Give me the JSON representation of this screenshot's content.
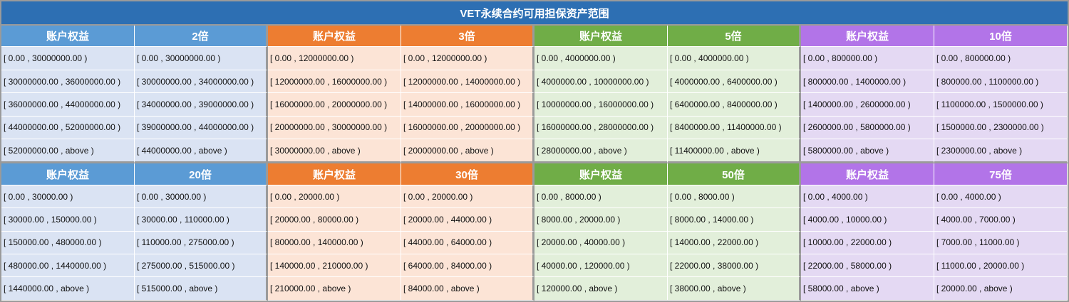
{
  "title": "VET永续合约可用担保资产范围",
  "colors": {
    "title_bg": "#2d6fb3",
    "blue_header": "#5b9bd5",
    "blue_cell": "#dae3f3",
    "orange_header": "#ed7d31",
    "orange_cell": "#fce4d6",
    "green_header": "#70ad47",
    "green_cell": "#e2efda",
    "purple_header": "#b274e8",
    "purple_cell": "#e4d9f3"
  },
  "blocks": [
    {
      "groups": [
        {
          "equity_label": "账户权益",
          "leverage_label": "2倍",
          "rows": [
            [
              "[ 0.00 , 30000000.00 )",
              "[ 0.00 , 30000000.00 )"
            ],
            [
              "[ 30000000.00 , 36000000.00 )",
              "[ 30000000.00 , 34000000.00 )"
            ],
            [
              "[ 36000000.00 , 44000000.00 )",
              "[ 34000000.00 , 39000000.00 )"
            ],
            [
              "[ 44000000.00 , 52000000.00 )",
              "[ 39000000.00 , 44000000.00 )"
            ],
            [
              "[ 52000000.00 , above )",
              "[ 44000000.00 , above )"
            ]
          ]
        },
        {
          "equity_label": "账户权益",
          "leverage_label": "3倍",
          "rows": [
            [
              "[ 0.00 , 12000000.00 )",
              "[ 0.00 , 12000000.00 )"
            ],
            [
              "[ 12000000.00 , 16000000.00 )",
              "[ 12000000.00 , 14000000.00 )"
            ],
            [
              "[ 16000000.00 , 20000000.00 )",
              "[ 14000000.00 , 16000000.00 )"
            ],
            [
              "[ 20000000.00 , 30000000.00 )",
              "[ 16000000.00 , 20000000.00 )"
            ],
            [
              "[ 30000000.00 , above )",
              "[ 20000000.00 , above )"
            ]
          ]
        },
        {
          "equity_label": "账户权益",
          "leverage_label": "5倍",
          "rows": [
            [
              "[ 0.00 , 4000000.00 )",
              "[ 0.00 , 4000000.00 )"
            ],
            [
              "[ 4000000.00 , 10000000.00 )",
              "[ 4000000.00 , 6400000.00 )"
            ],
            [
              "[ 10000000.00 , 16000000.00 )",
              "[ 6400000.00 , 8400000.00 )"
            ],
            [
              "[ 16000000.00 , 28000000.00 )",
              "[ 8400000.00 , 11400000.00 )"
            ],
            [
              "[ 28000000.00 , above )",
              "[ 11400000.00 , above )"
            ]
          ]
        },
        {
          "equity_label": "账户权益",
          "leverage_label": "10倍",
          "rows": [
            [
              "[ 0.00 , 800000.00 )",
              "[ 0.00 , 800000.00 )"
            ],
            [
              "[ 800000.00 , 1400000.00 )",
              "[ 800000.00 , 1100000.00 )"
            ],
            [
              "[ 1400000.00 , 2600000.00 )",
              "[ 1100000.00 , 1500000.00 )"
            ],
            [
              "[ 2600000.00 , 5800000.00 )",
              "[ 1500000.00 , 2300000.00 )"
            ],
            [
              "[ 5800000.00 , above )",
              "[ 2300000.00 , above )"
            ]
          ]
        }
      ]
    },
    {
      "groups": [
        {
          "equity_label": "账户权益",
          "leverage_label": "20倍",
          "rows": [
            [
              "[ 0.00 , 30000.00 )",
              "[ 0.00 , 30000.00 )"
            ],
            [
              "[ 30000.00 , 150000.00 )",
              "[ 30000.00 , 110000.00 )"
            ],
            [
              "[ 150000.00 , 480000.00 )",
              "[ 110000.00 , 275000.00 )"
            ],
            [
              "[ 480000.00 , 1440000.00 )",
              "[ 275000.00 , 515000.00 )"
            ],
            [
              "[ 1440000.00 , above )",
              "[ 515000.00 , above )"
            ]
          ]
        },
        {
          "equity_label": "账户权益",
          "leverage_label": "30倍",
          "rows": [
            [
              "[ 0.00 , 20000.00 )",
              "[ 0.00 , 20000.00 )"
            ],
            [
              "[ 20000.00 , 80000.00 )",
              "[ 20000.00 , 44000.00 )"
            ],
            [
              "[ 80000.00 , 140000.00 )",
              "[ 44000.00 , 64000.00 )"
            ],
            [
              "[ 140000.00 , 210000.00 )",
              "[ 64000.00 , 84000.00 )"
            ],
            [
              "[ 210000.00 , above )",
              "[ 84000.00 , above )"
            ]
          ]
        },
        {
          "equity_label": "账户权益",
          "leverage_label": "50倍",
          "rows": [
            [
              "[ 0.00 , 8000.00 )",
              "[ 0.00 , 8000.00 )"
            ],
            [
              "[ 8000.00 , 20000.00 )",
              "[ 8000.00 , 14000.00 )"
            ],
            [
              "[ 20000.00 , 40000.00 )",
              "[ 14000.00 , 22000.00 )"
            ],
            [
              "[ 40000.00 , 120000.00 )",
              "[ 22000.00 , 38000.00 )"
            ],
            [
              "[ 120000.00 , above )",
              "[ 38000.00 , above )"
            ]
          ]
        },
        {
          "equity_label": "账户权益",
          "leverage_label": "75倍",
          "rows": [
            [
              "[ 0.00 , 4000.00 )",
              "[ 0.00 , 4000.00 )"
            ],
            [
              "[ 4000.00 , 10000.00 )",
              "[ 4000.00 , 7000.00 )"
            ],
            [
              "[ 10000.00 , 22000.00 )",
              "[ 7000.00 , 11000.00 )"
            ],
            [
              "[ 22000.00 , 58000.00 )",
              "[ 11000.00 , 20000.00 )"
            ],
            [
              "[ 58000.00 , above )",
              "[ 20000.00 , above )"
            ]
          ]
        }
      ]
    }
  ]
}
